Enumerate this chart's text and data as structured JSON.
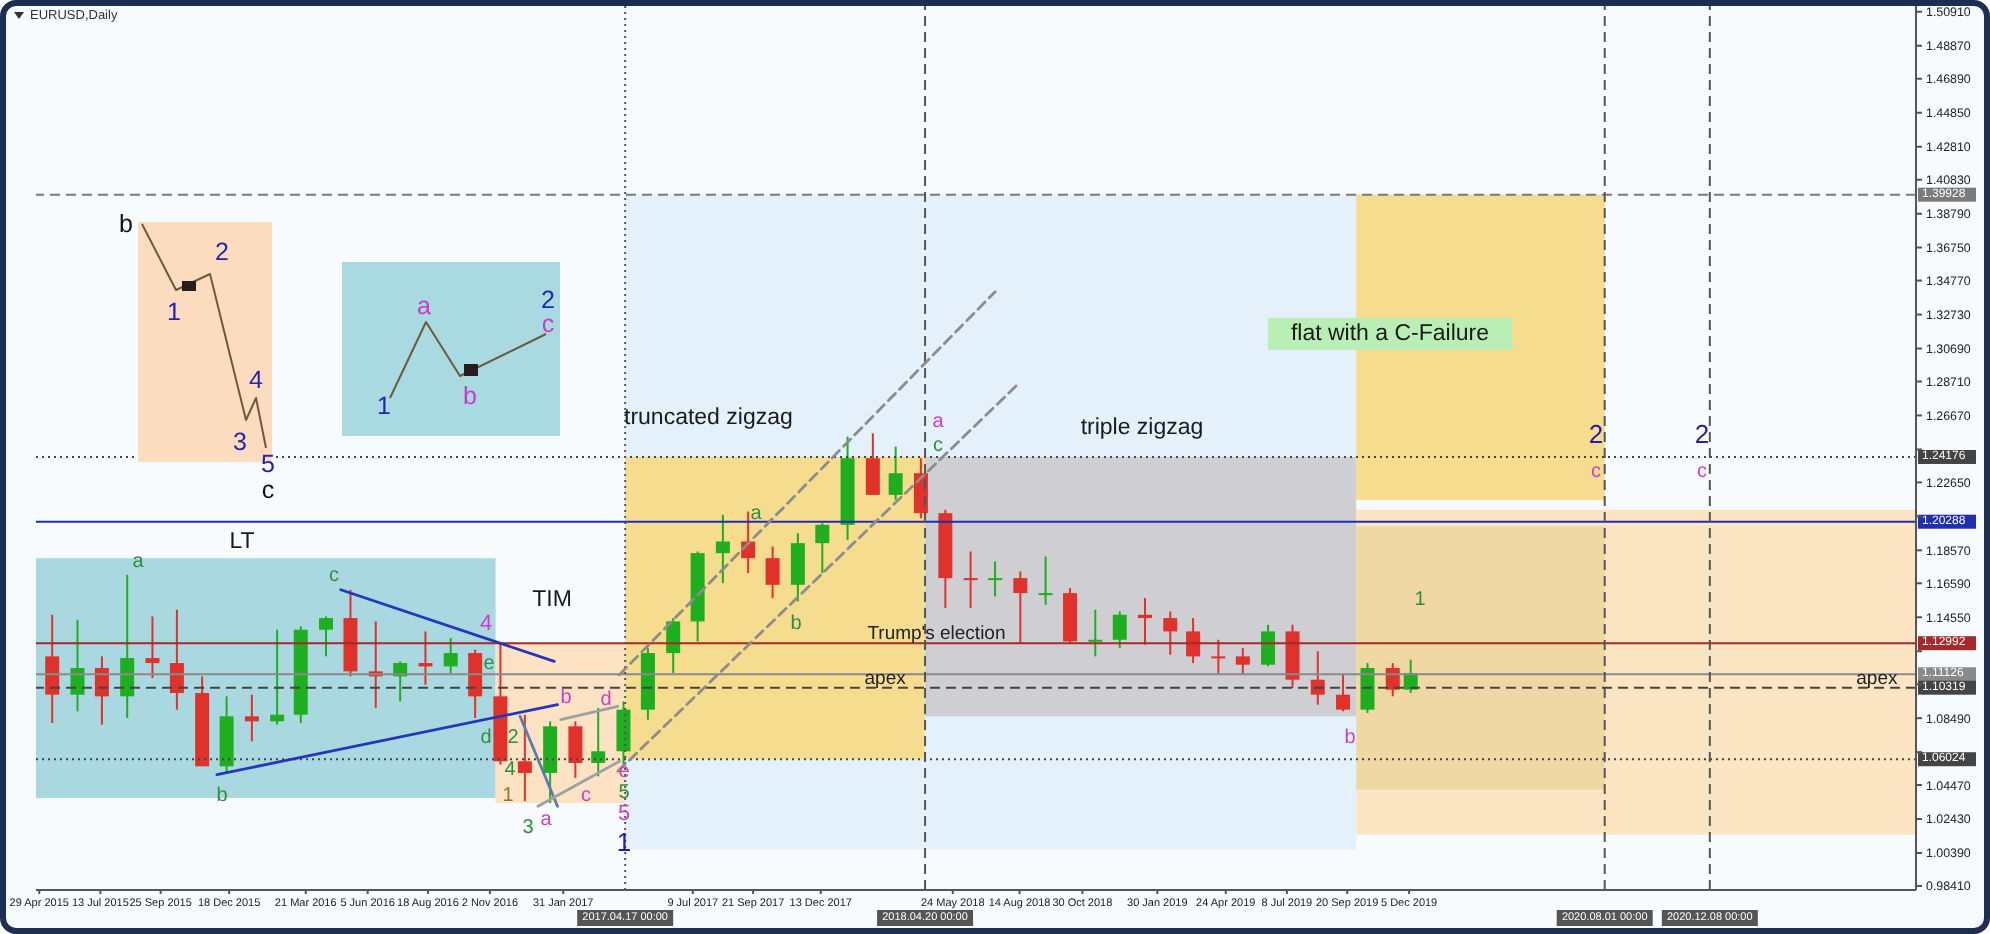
{
  "chart_data": {
    "type": "candlestick",
    "title": "EURUSD,Daily",
    "x": [
      "2015-05-15",
      "2015-06-15",
      "2015-07-15",
      "2015-08-15",
      "2015-09-15",
      "2015-10-15",
      "2015-11-15",
      "2015-12-15",
      "2016-01-15",
      "2016-02-15",
      "2016-03-15",
      "2016-04-15",
      "2016-05-15",
      "2016-06-15",
      "2016-07-15",
      "2016-08-15",
      "2016-09-15",
      "2016-10-15",
      "2016-11-15",
      "2016-12-15",
      "2017-01-15",
      "2017-02-15",
      "2017-03-15",
      "2017-04-15",
      "2017-05-15",
      "2017-06-15",
      "2017-07-15",
      "2017-08-15",
      "2017-09-15",
      "2017-10-15",
      "2017-11-15",
      "2017-12-15",
      "2018-01-15",
      "2018-02-15",
      "2018-03-15",
      "2018-04-15",
      "2018-05-15",
      "2018-06-15",
      "2018-07-15",
      "2018-08-15",
      "2018-09-15",
      "2018-10-15",
      "2018-11-15",
      "2018-12-15",
      "2019-01-15",
      "2019-02-15",
      "2019-03-15",
      "2019-04-15",
      "2019-05-15",
      "2019-06-15",
      "2019-07-15",
      "2019-08-15",
      "2019-09-15",
      "2019-10-15",
      "2019-11-15",
      "2019-12-07"
    ],
    "ohlc": [
      [
        1.122,
        1.147,
        1.082,
        1.099
      ],
      [
        1.099,
        1.144,
        1.089,
        1.115
      ],
      [
        1.115,
        1.122,
        1.081,
        1.098
      ],
      [
        1.098,
        1.171,
        1.085,
        1.121
      ],
      [
        1.121,
        1.146,
        1.109,
        1.118
      ],
      [
        1.118,
        1.15,
        1.09,
        1.1
      ],
      [
        1.1,
        1.11,
        1.056,
        1.056
      ],
      [
        1.056,
        1.098,
        1.052,
        1.086
      ],
      [
        1.086,
        1.099,
        1.071,
        1.083
      ],
      [
        1.083,
        1.138,
        1.081,
        1.087
      ],
      [
        1.087,
        1.14,
        1.082,
        1.138
      ],
      [
        1.138,
        1.146,
        1.122,
        1.145
      ],
      [
        1.145,
        1.162,
        1.11,
        1.113
      ],
      [
        1.113,
        1.143,
        1.091,
        1.11
      ],
      [
        1.11,
        1.119,
        1.095,
        1.118
      ],
      [
        1.118,
        1.137,
        1.105,
        1.116
      ],
      [
        1.116,
        1.133,
        1.112,
        1.124
      ],
      [
        1.124,
        1.126,
        1.085,
        1.098
      ],
      [
        1.098,
        1.13,
        1.057,
        1.059
      ],
      [
        1.059,
        1.087,
        1.035,
        1.052
      ],
      [
        1.052,
        1.083,
        1.034,
        1.08
      ],
      [
        1.08,
        1.083,
        1.049,
        1.058
      ],
      [
        1.058,
        1.091,
        1.05,
        1.065
      ],
      [
        1.065,
        1.095,
        1.057,
        1.09
      ],
      [
        1.09,
        1.127,
        1.084,
        1.124
      ],
      [
        1.124,
        1.145,
        1.112,
        1.143
      ],
      [
        1.143,
        1.185,
        1.131,
        1.184
      ],
      [
        1.184,
        1.207,
        1.166,
        1.191
      ],
      [
        1.191,
        1.209,
        1.172,
        1.181
      ],
      [
        1.181,
        1.188,
        1.157,
        1.165
      ],
      [
        1.165,
        1.196,
        1.155,
        1.19
      ],
      [
        1.19,
        1.202,
        1.172,
        1.201
      ],
      [
        1.201,
        1.254,
        1.192,
        1.241
      ],
      [
        1.241,
        1.256,
        1.219,
        1.219
      ],
      [
        1.219,
        1.248,
        1.216,
        1.232
      ],
      [
        1.232,
        1.241,
        1.205,
        1.208
      ],
      [
        1.208,
        1.21,
        1.151,
        1.169
      ],
      [
        1.169,
        1.185,
        1.151,
        1.168
      ],
      [
        1.168,
        1.179,
        1.158,
        1.169
      ],
      [
        1.169,
        1.173,
        1.13,
        1.16
      ],
      [
        1.16,
        1.182,
        1.153,
        1.16
      ],
      [
        1.16,
        1.163,
        1.13,
        1.131
      ],
      [
        1.131,
        1.15,
        1.122,
        1.132
      ],
      [
        1.132,
        1.149,
        1.127,
        1.147
      ],
      [
        1.147,
        1.157,
        1.129,
        1.145
      ],
      [
        1.145,
        1.149,
        1.123,
        1.137
      ],
      [
        1.137,
        1.145,
        1.118,
        1.122
      ],
      [
        1.122,
        1.132,
        1.111,
        1.122
      ],
      [
        1.122,
        1.127,
        1.111,
        1.117
      ],
      [
        1.117,
        1.141,
        1.116,
        1.137
      ],
      [
        1.137,
        1.141,
        1.103,
        1.108
      ],
      [
        1.108,
        1.125,
        1.093,
        1.099
      ],
      [
        1.099,
        1.111,
        1.089,
        1.09
      ],
      [
        1.09,
        1.118,
        1.088,
        1.115
      ],
      [
        1.115,
        1.118,
        1.098,
        1.102
      ],
      [
        1.102,
        1.12,
        1.1,
        1.112
      ]
    ],
    "colors": [
      "#e0322a",
      "#1fae1f",
      "#e0322a",
      "#1fae1f",
      "#e0322a",
      "#e0322a",
      "#e0322a",
      "#1fae1f",
      "#e0322a",
      "#1fae1f",
      "#1fae1f",
      "#1fae1f",
      "#e0322a",
      "#e0322a",
      "#1fae1f",
      "#e0322a",
      "#1fae1f",
      "#e0322a",
      "#e0322a",
      "#e0322a",
      "#1fae1f",
      "#e0322a",
      "#1fae1f",
      "#1fae1f",
      "#1fae1f",
      "#1fae1f",
      "#1fae1f",
      "#1fae1f",
      "#e0322a",
      "#e0322a",
      "#1fae1f",
      "#1fae1f",
      "#1fae1f",
      "#e0322a",
      "#1fae1f",
      "#e0322a",
      "#e0322a",
      "#e0322a",
      "#1fae1f",
      "#e0322a",
      "#1fae1f",
      "#e0322a",
      "#1fae1f",
      "#1fae1f",
      "#e0322a",
      "#e0322a",
      "#e0322a",
      "#e0322a",
      "#e0322a",
      "#1fae1f",
      "#e0322a",
      "#e0322a",
      "#e0322a",
      "#1fae1f",
      "#e0322a",
      "#1fae1f"
    ],
    "series": [
      {
        "type": "line",
        "x": [
          "2016-05-03",
          "2017-01-20"
        ],
        "values": [
          1.162,
          1.119
        ],
        "color": "#2636b8"
      },
      {
        "type": "line",
        "x": [
          "2015-12-03",
          "2017-01-24"
        ],
        "values": [
          1.051,
          1.093
        ],
        "color": "#2636b8"
      },
      {
        "type": "line",
        "x": [
          "2016-12-09",
          "2017-01-24"
        ],
        "values": [
          1.086,
          1.032
        ],
        "color": "#5b7bb0"
      },
      {
        "type": "line",
        "x": [
          "2017-01-28",
          "2017-04-08"
        ],
        "values": [
          1.084,
          1.092
        ],
        "color": "#9aa3a3"
      },
      {
        "type": "line",
        "x": [
          "2016-12-31",
          "2017-04-10"
        ],
        "values": [
          1.032,
          1.059
        ],
        "color": "#9aa3a3"
      },
      {
        "type": "line",
        "x": [
          "2017-04-10",
          "2018-07-15"
        ],
        "values": [
          1.111,
          1.341
        ],
        "color": "#8c8c8c",
        "line_style": "dashed"
      },
      {
        "type": "line",
        "x": [
          "2017-04-08",
          "2018-08-11"
        ],
        "values": [
          1.053,
          1.285
        ],
        "color": "#8c8c8c",
        "line_style": "dashed"
      }
    ],
    "xlim": [
      "2015-04-25",
      "2021-08-18"
    ],
    "xticks": [
      {
        "value": "2015-04-29",
        "label": "29 Apr 2015"
      },
      {
        "value": "2015-07-13",
        "label": "13 Jul 2015"
      },
      {
        "value": "2015-09-25",
        "label": "25 Sep 2015"
      },
      {
        "value": "2015-12-18",
        "label": "18 Dec 2015"
      },
      {
        "value": "2016-03-21",
        "label": "21 Mar 2016"
      },
      {
        "value": "2016-06-05",
        "label": "5 Jun 2016"
      },
      {
        "value": "2016-08-18",
        "label": "18 Aug 2016"
      },
      {
        "value": "2016-11-02",
        "label": "2 Nov 2016"
      },
      {
        "value": "2017-01-31",
        "label": "31 Jan 2017"
      },
      {
        "value": "2017-07-09",
        "label": "9 Jul 2017"
      },
      {
        "value": "2017-09-21",
        "label": "21 Sep 2017"
      },
      {
        "value": "2017-12-13",
        "label": "13 Dec 2017"
      },
      {
        "value": "2018-05-24",
        "label": "24 May 2018"
      },
      {
        "value": "2018-08-14",
        "label": "14 Aug 2018"
      },
      {
        "value": "2018-10-30",
        "label": "30 Oct 2018"
      },
      {
        "value": "2019-01-30",
        "label": "30 Jan 2019"
      },
      {
        "value": "2019-04-24",
        "label": "24 Apr 2019"
      },
      {
        "value": "2019-07-08",
        "label": "8 Jul 2019"
      },
      {
        "value": "2019-09-20",
        "label": "20 Sep 2019"
      },
      {
        "value": "2019-12-05",
        "label": "5 Dec 2019"
      }
    ],
    "ylim": [
      0.9817,
      1.5126
    ],
    "yticks": [
      {
        "value": 1.5091,
        "label": "1.50910"
      },
      {
        "value": 1.4887,
        "label": "1.48870"
      },
      {
        "value": 1.4689,
        "label": "1.46890"
      },
      {
        "value": 1.4485,
        "label": "1.44850"
      },
      {
        "value": 1.4281,
        "label": "1.42810"
      },
      {
        "value": 1.4083,
        "label": "1.40830"
      },
      {
        "value": 1.3879,
        "label": "1.38790"
      },
      {
        "value": 1.3675,
        "label": "1.36750"
      },
      {
        "value": 1.3477,
        "label": "1.34770"
      },
      {
        "value": 1.3273,
        "label": "1.32730"
      },
      {
        "value": 1.3069,
        "label": "1.30690"
      },
      {
        "value": 1.2871,
        "label": "1.28710"
      },
      {
        "value": 1.2667,
        "label": "1.26670"
      },
      {
        "value": 1.2463,
        "label": null
      },
      {
        "value": 1.2265,
        "label": "1.22650"
      },
      {
        "value": 1.2061,
        "label": null
      },
      {
        "value": 1.1857,
        "label": "1.18570"
      },
      {
        "value": 1.1659,
        "label": "1.16590"
      },
      {
        "value": 1.1455,
        "label": "1.14550"
      },
      {
        "value": 1.1251,
        "label": null
      },
      {
        "value": 1.1053,
        "label": null
      },
      {
        "value": 1.0849,
        "label": "1.08490"
      },
      {
        "value": 1.0645,
        "label": null
      },
      {
        "value": 1.0447,
        "label": "1.04470"
      },
      {
        "value": 1.0243,
        "label": "1.02430"
      },
      {
        "value": 1.0039,
        "label": "1.00390"
      },
      {
        "value": 0.9841,
        "label": "0.98410"
      }
    ],
    "ref_lines": [
      {
        "axis": "y",
        "value": 1.39928,
        "label": "1.39928",
        "color": "#7a7a7a",
        "line_style": "dashed"
      },
      {
        "axis": "y",
        "value": 1.24176,
        "label": "1.24176",
        "color": "#444444",
        "line_style": "dotted"
      },
      {
        "axis": "y",
        "value": 1.20288,
        "label": "1.20288",
        "color": "#1f2fb0",
        "line_style": "solid"
      },
      {
        "axis": "y",
        "value": 1.12992,
        "label": "1.12992",
        "color": "#a52a2a",
        "line_style": "solid"
      },
      {
        "axis": "y",
        "value": 1.11126,
        "label": "1.11126",
        "color": "#8a8a8a",
        "line_style": "solid"
      },
      {
        "axis": "y",
        "value": 1.10319,
        "label": "1.10319",
        "color": "#444444",
        "line_style": "dashed"
      },
      {
        "axis": "y",
        "value": 1.06024,
        "label": "1.06024",
        "color": "#444444",
        "line_style": "dotted"
      },
      {
        "axis": "x",
        "value": "2017-04-17",
        "label": "2017.04.17 00:00",
        "color": "#555555",
        "line_style": "dotted"
      },
      {
        "axis": "x",
        "value": "2018-04-20",
        "label": "2018.04.20 00:00",
        "color": "#555555",
        "line_style": "dashed"
      },
      {
        "axis": "x",
        "value": "2020-08-01",
        "label": "2020.08.01 00:00",
        "color": "#555555",
        "line_style": "dashed"
      },
      {
        "axis": "x",
        "value": "2020-12-08",
        "label": "2020.12.08 00:00",
        "color": "#555555",
        "line_style": "dashed"
      }
    ],
    "annotations": [
      "b",
      "1",
      "2",
      "3",
      "4",
      "5",
      "c",
      "1",
      "a",
      "b",
      "c",
      "2",
      "LT",
      "TIM",
      "truncated zigzag",
      "triple zigzag",
      "flat with a C-Failure",
      "a",
      "b",
      "c",
      "d",
      "e",
      "4",
      "2",
      "1",
      "3",
      "a",
      "4",
      "b",
      "c",
      "d",
      "e",
      "5",
      "5",
      "1",
      "a",
      "b",
      "a",
      "c",
      "b",
      "1",
      "2",
      "c",
      "2",
      "c",
      {
        "text": "Trump's election",
        "x": "2018-05-04",
        "y": 1.12992
      },
      {
        "text": "apex",
        "x": "2018-03-02",
        "y": 1.10319
      },
      {
        "text": "apex",
        "x": "2021-07-01",
        "y": 1.10319
      }
    ]
  }
}
